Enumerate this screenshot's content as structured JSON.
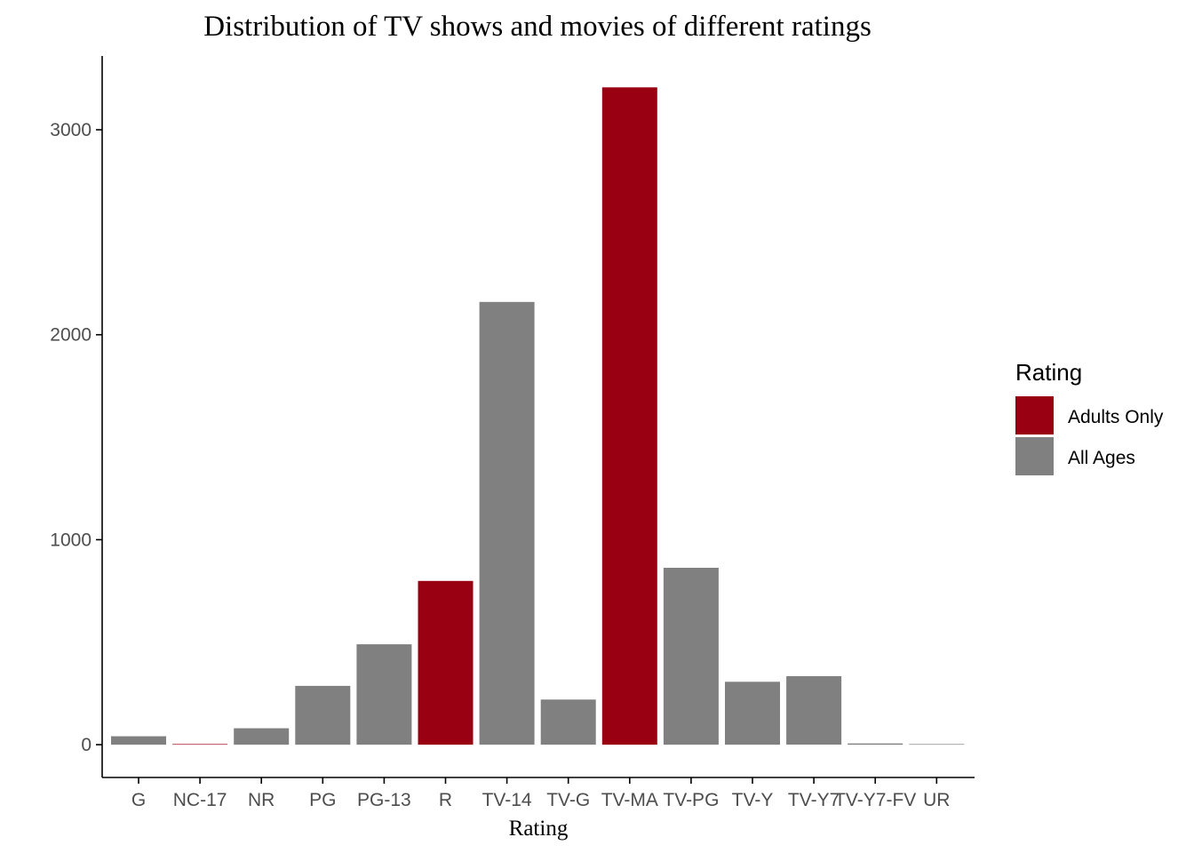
{
  "chart_data": {
    "type": "bar",
    "title": "Distribution of TV shows and movies of different ratings",
    "xlabel": "Rating",
    "ylabel": "",
    "categories": [
      "G",
      "NC-17",
      "NR",
      "PG",
      "PG-13",
      "R",
      "TV-14",
      "TV-G",
      "TV-MA",
      "TV-PG",
      "TV-Y",
      "TV-Y7",
      "TV-Y7-FV",
      "UR"
    ],
    "values": [
      41,
      3,
      80,
      287,
      490,
      799,
      2160,
      220,
      3207,
      863,
      307,
      334,
      6,
      3
    ],
    "groups": [
      "All Ages",
      "Adults Only",
      "All Ages",
      "All Ages",
      "All Ages",
      "Adults Only",
      "All Ages",
      "All Ages",
      "Adults Only",
      "All Ages",
      "All Ages",
      "All Ages",
      "All Ages",
      "All Ages"
    ],
    "ylim": [
      -160,
      3360
    ],
    "yticks": [
      0,
      1000,
      2000,
      3000
    ],
    "grid": false,
    "legend": {
      "title": "Rating",
      "placement": "right",
      "entries": [
        {
          "label": "Adults Only",
          "color": "#990012"
        },
        {
          "label": "All Ages",
          "color": "#808080"
        }
      ]
    }
  }
}
